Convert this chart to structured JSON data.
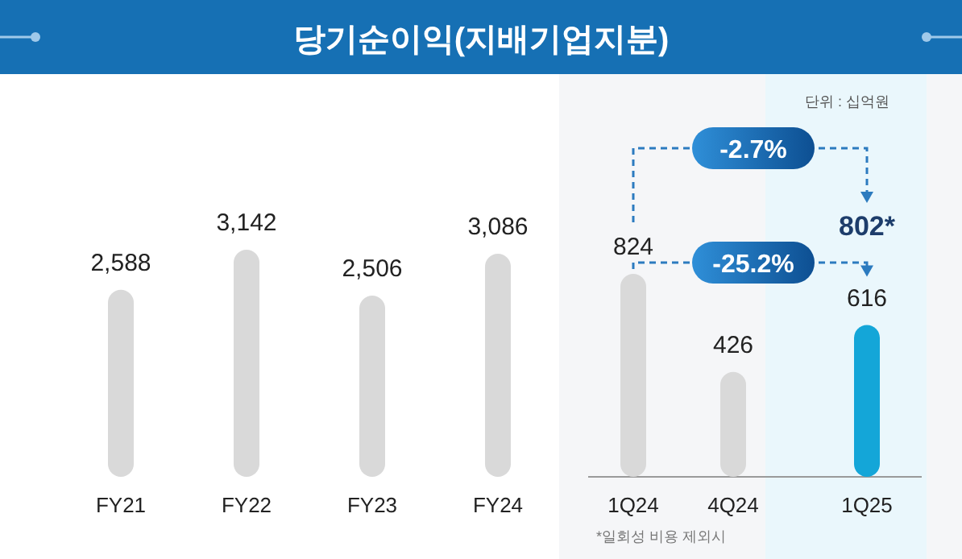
{
  "chart_data": [
    {
      "type": "bar",
      "title": "당기순이익(지배기업지분)",
      "categories": [
        "FY21",
        "FY22",
        "FY23",
        "FY24"
      ],
      "values": [
        2588,
        3142,
        2506,
        3086
      ],
      "colors": [
        "#d9d9d9",
        "#d9d9d9",
        "#d9d9d9",
        "#d9d9d9"
      ],
      "value_labels": [
        "2,588",
        "3,142",
        "2,506",
        "3,086"
      ]
    },
    {
      "type": "bar",
      "categories": [
        "1Q24",
        "4Q24",
        "1Q25"
      ],
      "values": [
        824,
        426,
        616
      ],
      "colors": [
        "#d9d9d9",
        "#d9d9d9",
        "#14a6d8"
      ],
      "data_labels": true,
      "annotations": [
        "단위 : 십억원",
        "802*",
        "-2.7%",
        "-25.2%",
        "*일회성 비용 제외시"
      ]
    }
  ]
}
